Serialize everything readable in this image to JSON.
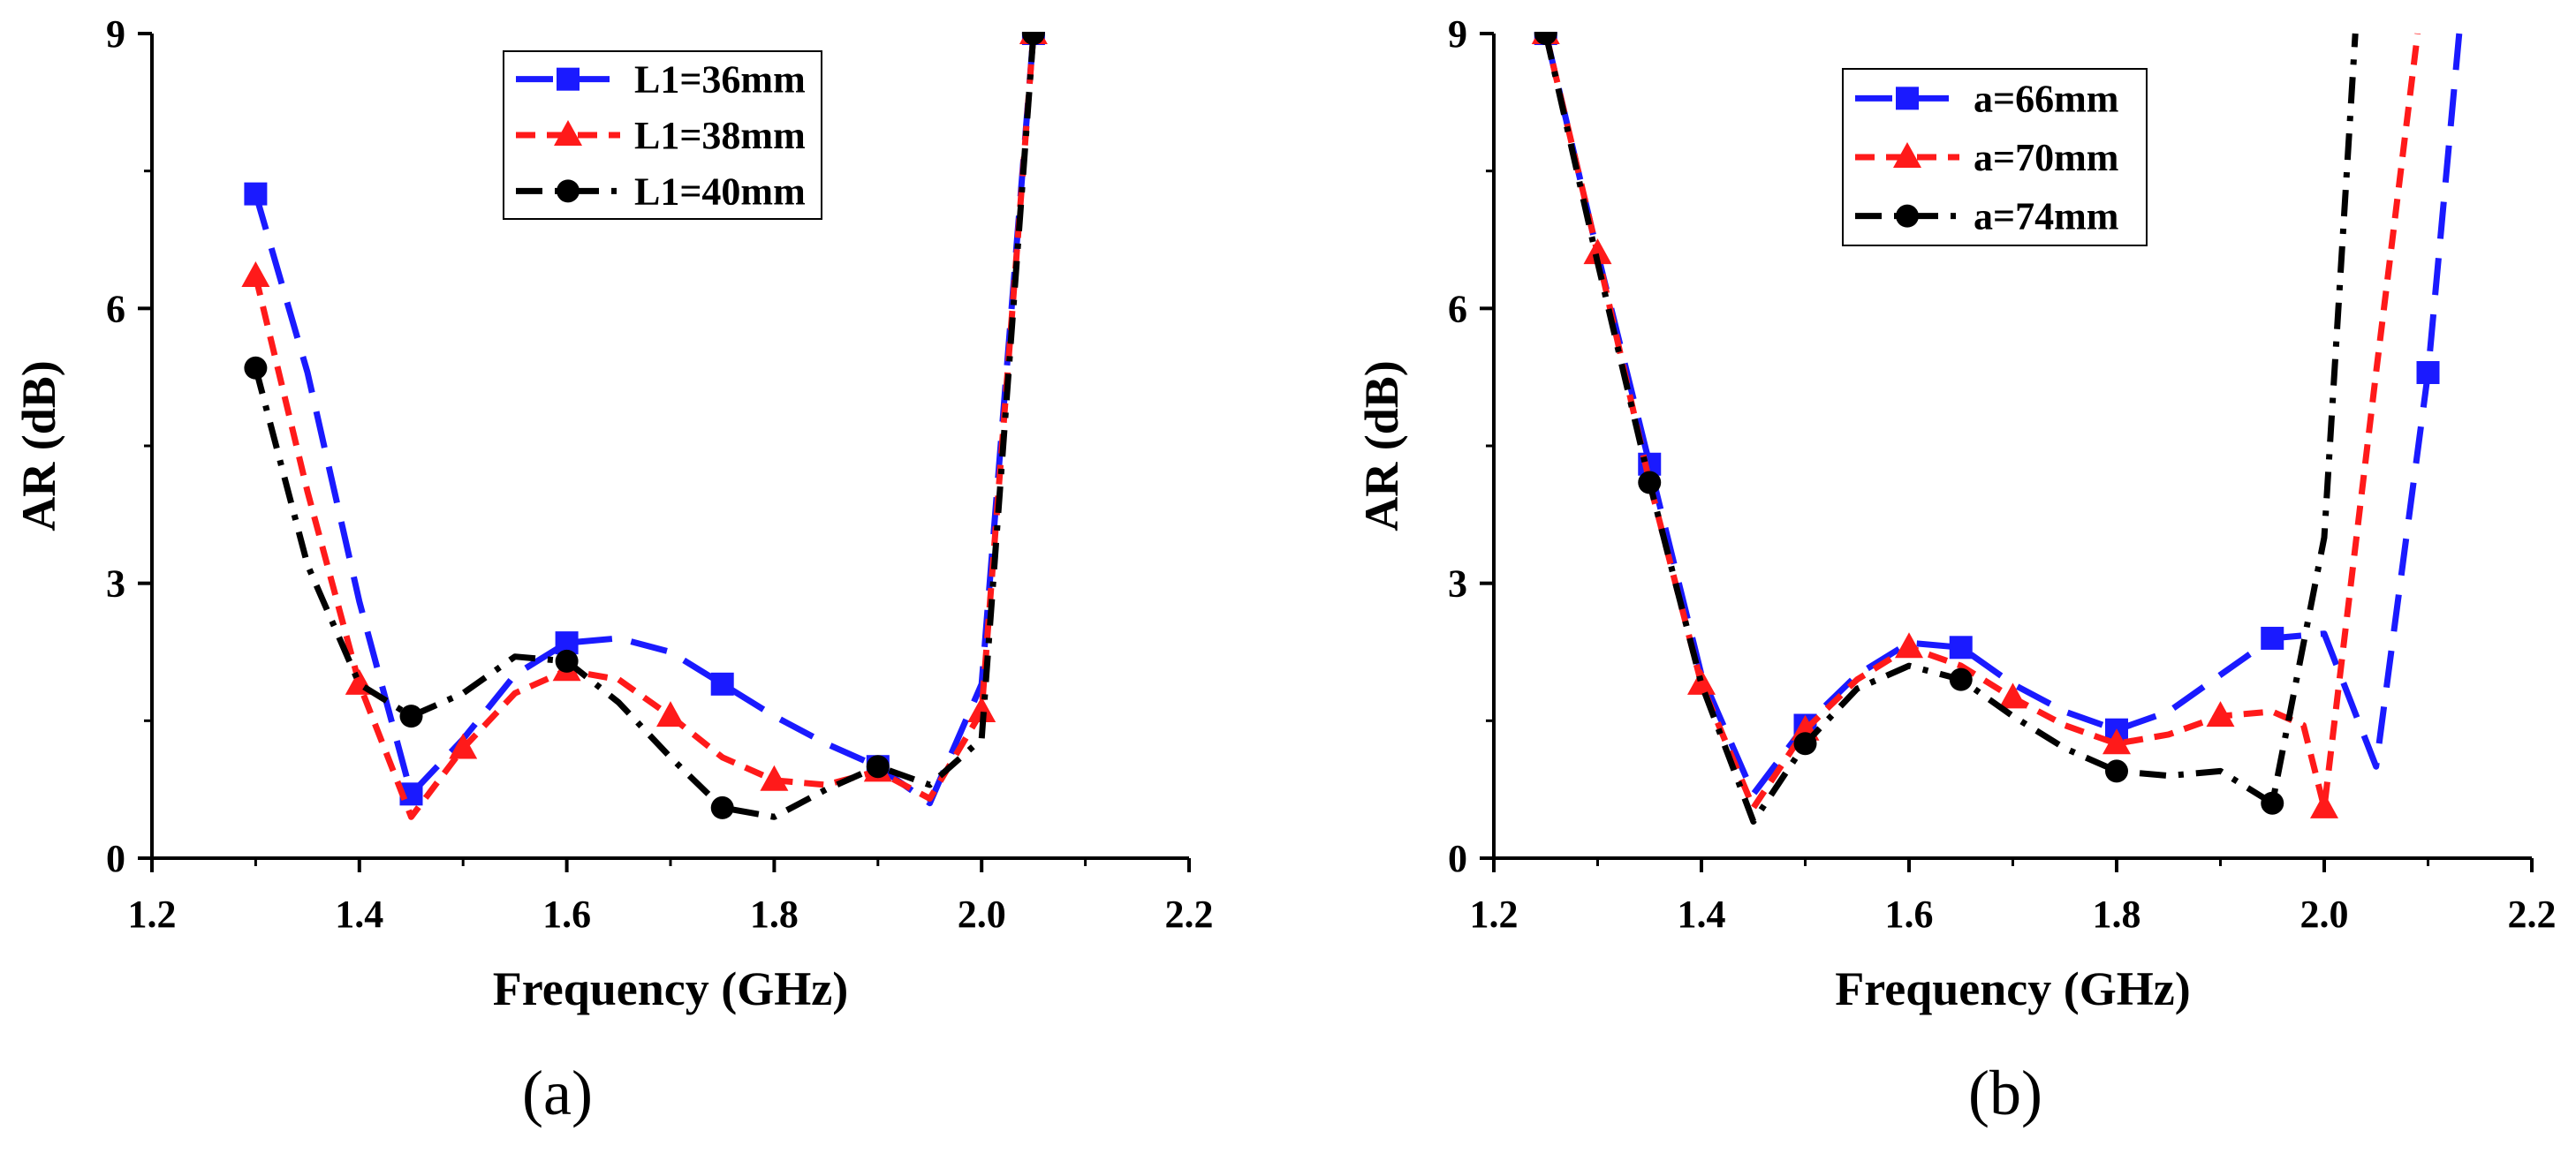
{
  "chart_data": [
    {
      "type": "line",
      "panel_label": "(a)",
      "xlabel": "Frequency (GHz)",
      "ylabel": "AR (dB)",
      "xlim": [
        1.2,
        2.2
      ],
      "ylim": [
        0,
        9
      ],
      "xticks": [
        "1.2",
        "1.4",
        "1.6",
        "1.8",
        "2.0",
        "2.2"
      ],
      "yticks": [
        "0",
        "3",
        "6",
        "9"
      ],
      "legend_position": "top-right",
      "series": [
        {
          "name": "L1=36mm",
          "color": "#1a1aff",
          "dash": "dash",
          "marker": "square",
          "x": [
            1.3,
            1.35,
            1.4,
            1.45,
            1.5,
            1.55,
            1.6,
            1.65,
            1.7,
            1.75,
            1.8,
            1.85,
            1.9,
            1.95,
            2.0,
            2.05
          ],
          "y": [
            7.25,
            5.3,
            2.8,
            0.7,
            1.3,
            2.0,
            2.35,
            2.4,
            2.25,
            1.9,
            1.55,
            1.25,
            1.0,
            0.6,
            1.9,
            9.0
          ],
          "markers_x": [
            1.3,
            1.45,
            1.6,
            1.75,
            1.9,
            2.05
          ],
          "markers_y": [
            7.25,
            0.7,
            2.35,
            1.9,
            1.0,
            9.0
          ]
        },
        {
          "name": "L1=38mm",
          "color": "#ff1a1a",
          "dash": "short-dash",
          "marker": "triangle",
          "x": [
            1.3,
            1.35,
            1.4,
            1.45,
            1.5,
            1.55,
            1.6,
            1.65,
            1.7,
            1.75,
            1.8,
            1.85,
            1.9,
            1.95,
            2.0,
            2.05
          ],
          "y": [
            6.35,
            4.0,
            1.9,
            0.45,
            1.2,
            1.8,
            2.05,
            1.95,
            1.55,
            1.1,
            0.85,
            0.8,
            0.95,
            0.65,
            1.6,
            9.0
          ],
          "markers_x": [
            1.3,
            1.4,
            1.5,
            1.6,
            1.7,
            1.8,
            1.9,
            2.0,
            2.05
          ],
          "markers_y": [
            6.35,
            1.9,
            1.2,
            2.05,
            1.55,
            0.85,
            0.95,
            1.6,
            9.0
          ]
        },
        {
          "name": "L1=40mm",
          "color": "#000000",
          "dash": "dash-dot",
          "marker": "circle",
          "x": [
            1.3,
            1.35,
            1.4,
            1.45,
            1.5,
            1.55,
            1.6,
            1.65,
            1.7,
            1.75,
            1.8,
            1.85,
            1.9,
            1.95,
            2.0,
            2.05
          ],
          "y": [
            5.35,
            3.2,
            1.9,
            1.55,
            1.8,
            2.2,
            2.15,
            1.7,
            1.1,
            0.55,
            0.45,
            0.75,
            1.0,
            0.8,
            1.3,
            9.0
          ],
          "markers_x": [
            1.3,
            1.45,
            1.6,
            1.75,
            1.9,
            2.05
          ],
          "markers_y": [
            5.35,
            1.55,
            2.15,
            0.55,
            1.0,
            9.0
          ]
        }
      ]
    },
    {
      "type": "line",
      "panel_label": "(b)",
      "xlabel": "Frequency (GHz)",
      "ylabel": "AR (dB)",
      "xlim": [
        1.2,
        2.2
      ],
      "ylim": [
        0,
        9
      ],
      "xticks": [
        "1.2",
        "1.4",
        "1.6",
        "1.8",
        "2.0",
        "2.2"
      ],
      "yticks": [
        "0",
        "3",
        "6",
        "9"
      ],
      "legend_position": "top-right",
      "series": [
        {
          "name": "a=66mm",
          "color": "#1a1aff",
          "dash": "dash",
          "marker": "square",
          "x": [
            1.25,
            1.3,
            1.35,
            1.4,
            1.45,
            1.5,
            1.55,
            1.6,
            1.65,
            1.7,
            1.75,
            1.8,
            1.85,
            1.9,
            1.95,
            2.0,
            2.05,
            2.1,
            2.13
          ],
          "y": [
            9.0,
            6.6,
            4.3,
            2.0,
            0.7,
            1.45,
            2.0,
            2.35,
            2.3,
            1.9,
            1.6,
            1.4,
            1.6,
            2.0,
            2.4,
            2.45,
            1.0,
            5.3,
            9.0
          ],
          "markers_x": [
            1.25,
            1.35,
            1.5,
            1.65,
            1.8,
            1.95,
            2.1
          ],
          "markers_y": [
            9.0,
            4.3,
            1.45,
            2.3,
            1.4,
            2.4,
            5.3
          ]
        },
        {
          "name": "a=70mm",
          "color": "#ff1a1a",
          "dash": "short-dash",
          "marker": "triangle",
          "x": [
            1.25,
            1.3,
            1.35,
            1.4,
            1.45,
            1.5,
            1.55,
            1.6,
            1.65,
            1.7,
            1.75,
            1.8,
            1.85,
            1.9,
            1.95,
            1.98,
            2.0,
            2.05,
            2.09
          ],
          "y": [
            9.0,
            6.6,
            4.1,
            1.9,
            0.55,
            1.4,
            1.95,
            2.3,
            2.1,
            1.75,
            1.45,
            1.25,
            1.35,
            1.55,
            1.6,
            1.45,
            0.55,
            5.3,
            9.0
          ],
          "markers_x": [
            1.25,
            1.3,
            1.4,
            1.5,
            1.6,
            1.7,
            1.8,
            1.9,
            2.0
          ],
          "markers_y": [
            9.0,
            6.6,
            1.9,
            1.4,
            2.3,
            1.75,
            1.25,
            1.55,
            0.55
          ]
        },
        {
          "name": "a=74mm",
          "color": "#000000",
          "dash": "dash-dot",
          "marker": "circle",
          "x": [
            1.25,
            1.3,
            1.35,
            1.4,
            1.45,
            1.5,
            1.55,
            1.6,
            1.65,
            1.7,
            1.75,
            1.8,
            1.85,
            1.9,
            1.95,
            2.0,
            2.03
          ],
          "y": [
            9.0,
            6.5,
            4.1,
            1.9,
            0.4,
            1.25,
            1.85,
            2.1,
            1.95,
            1.55,
            1.2,
            0.95,
            0.9,
            0.95,
            0.6,
            3.5,
            9.0
          ],
          "markers_x": [
            1.25,
            1.35,
            1.5,
            1.65,
            1.8,
            1.95
          ],
          "markers_y": [
            9.0,
            4.1,
            1.25,
            1.95,
            0.95,
            0.6
          ]
        }
      ]
    }
  ]
}
